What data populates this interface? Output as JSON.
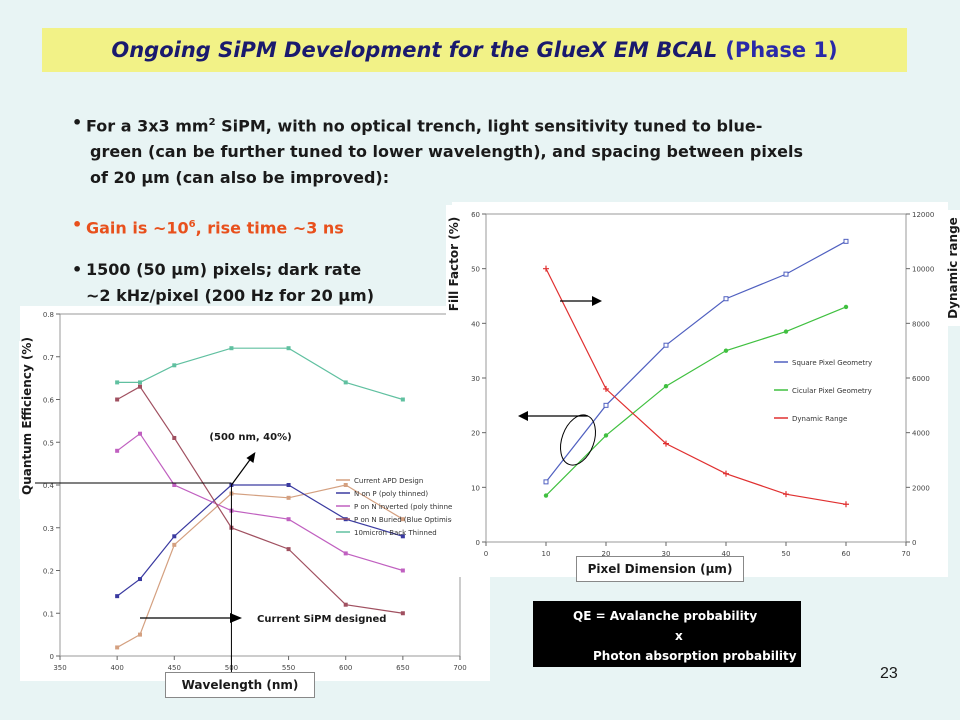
{
  "slide": {
    "title": "Ongoing SiPM Development for the GlueX EM BCAL",
    "title_phase": "(Phase 1)",
    "page_number": "23",
    "bullets": {
      "b1_line1": "For a 3x3 mm",
      "b1_sup": "2",
      "b1_line1_rest": " SiPM, with no optical trench, light sensitivity tuned to blue-",
      "b1_line2": "green (can be further tuned to lower wavelength), and spacing between pixels",
      "b1_line3": "of 20 μm (can also be improved):",
      "b2_pre": "Gain is ~10",
      "b2_sup": "6",
      "b2_post": ", rise time ~3 ns",
      "b3_line1": "1500 (50 μm) pixels; dark rate",
      "b3_line2": "~2 kHz/pixel (200 Hz for 20 μm)"
    },
    "bullet_char": "•",
    "annotations": {
      "point_label": "(500 nm, 40%)",
      "current_design": "Current SiPM designed"
    },
    "qe_box": {
      "line1": "QE = Avalanche probability",
      "line2": "x",
      "line3": "Photon absorption probability"
    }
  },
  "chart_data": [
    {
      "type": "line",
      "xlabel": "Wavelength (nm)",
      "ylabel": "Quantum Efficiency (%)",
      "xlim": [
        350,
        700
      ],
      "ylim": [
        0,
        0.8
      ],
      "x_ticks": [
        "350",
        "400",
        "450",
        "500",
        "550",
        "600",
        "650",
        "700"
      ],
      "y_ticks": [
        "0",
        "0.1",
        "0.2",
        "0.3",
        "0.4",
        "0.5",
        "0.6",
        "0.7",
        "0.8"
      ],
      "legend_position": "right",
      "series": [
        {
          "name": "Current APD Design",
          "color": "#d4a080",
          "x": [
            400,
            420,
            450,
            500,
            550,
            600,
            650
          ],
          "values": [
            0.02,
            0.05,
            0.26,
            0.38,
            0.37,
            0.4,
            0.32
          ]
        },
        {
          "name": "N on P (poly thinned)",
          "color": "#3a3aa0",
          "x": [
            400,
            420,
            450,
            500,
            550,
            600,
            650
          ],
          "values": [
            0.14,
            0.18,
            0.28,
            0.4,
            0.4,
            0.32,
            0.28
          ]
        },
        {
          "name": "P on N inverted (poly thinned)",
          "color": "#c060c0",
          "x": [
            400,
            420,
            450,
            500,
            550,
            600,
            650
          ],
          "values": [
            0.48,
            0.52,
            0.4,
            0.34,
            0.32,
            0.24,
            0.2
          ]
        },
        {
          "name": "P on N Buried (Blue Optimise",
          "color": "#a05060",
          "x": [
            400,
            420,
            450,
            500,
            550,
            600,
            650
          ],
          "values": [
            0.6,
            0.63,
            0.51,
            0.3,
            0.25,
            0.12,
            0.1
          ]
        },
        {
          "name": "10micron Back Thinned",
          "color": "#60c0a0",
          "x": [
            400,
            420,
            450,
            500,
            550,
            600,
            650
          ],
          "values": [
            0.64,
            0.64,
            0.68,
            0.72,
            0.72,
            0.64,
            0.6
          ]
        }
      ]
    },
    {
      "type": "line",
      "xlabel": "Pixel Dimension (μm)",
      "ylabel": "Fill Factor (%)",
      "y2label": "Dynamic range",
      "xlim": [
        0,
        70
      ],
      "ylim": [
        0,
        60
      ],
      "y2lim": [
        0,
        12000
      ],
      "x_ticks": [
        "0",
        "10",
        "20",
        "30",
        "40",
        "50",
        "60",
        "70"
      ],
      "y_ticks": [
        "0",
        "10",
        "20",
        "30",
        "40",
        "50",
        "60"
      ],
      "y2_ticks": [
        "0",
        "2000",
        "4000",
        "6000",
        "8000",
        "10000",
        "12000"
      ],
      "legend_position": "right",
      "series": [
        {
          "name": "Square Pixel Geometry",
          "color": "#5060c0",
          "axis": "left",
          "marker": "square",
          "x": [
            10,
            20,
            30,
            40,
            50,
            60
          ],
          "values": [
            11,
            25,
            36,
            44.5,
            49,
            55
          ]
        },
        {
          "name": "Cicular Pixel Geometry",
          "color": "#40c040",
          "axis": "left",
          "marker": "circle",
          "x": [
            10,
            20,
            30,
            40,
            50,
            60
          ],
          "values": [
            8.5,
            19.5,
            28.5,
            35,
            38.5,
            43
          ]
        },
        {
          "name": "Dynamic Range",
          "color": "#e03030",
          "axis": "right",
          "marker": "plus",
          "x": [
            10,
            20,
            30,
            40,
            50,
            60
          ],
          "values": [
            10000,
            5600,
            3600,
            2500,
            1750,
            1380
          ]
        }
      ]
    }
  ]
}
